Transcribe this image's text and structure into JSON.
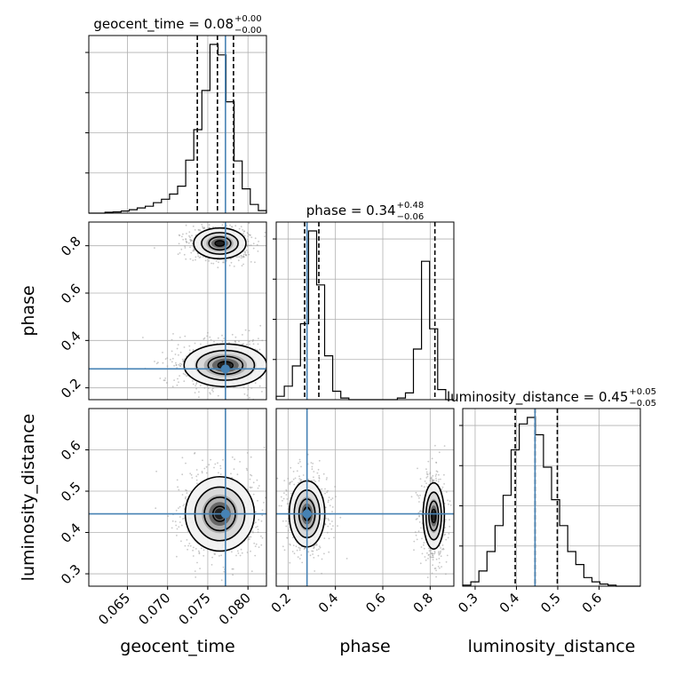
{
  "chart_data": {
    "type": "corner",
    "parameters": [
      {
        "name": "geocent_time",
        "xlabel": "geocent_time",
        "ylabel": "",
        "title_prefix": "geocent_time = 0.08",
        "title_sup": "+0.00",
        "title_sub": "−0.00",
        "range": [
          0.0602,
          0.0823
        ],
        "ticks": [
          0.065,
          0.07,
          0.075,
          0.08
        ],
        "tick_labels": [
          "0.065",
          "0.070",
          "0.075",
          "0.080"
        ],
        "truth": 0.0772,
        "quantiles": [
          0.0737,
          0.0762,
          0.0782
        ],
        "hist": [
          0,
          0,
          0.5,
          0.7,
          1.2,
          2.0,
          3.0,
          4.0,
          6.0,
          8.0,
          11.0,
          15.5,
          30.5,
          48.0,
          70.5,
          97.0,
          91.0,
          64.0,
          30.0,
          14.0,
          5.0,
          1.5
        ]
      },
      {
        "name": "phase",
        "xlabel": "phase",
        "ylabel": "phase",
        "title_prefix": "phase = 0.34",
        "title_sup": "+0.48",
        "title_sub": "−0.06",
        "range": [
          0.15,
          0.9
        ],
        "ticks": [
          0.2,
          0.4,
          0.6,
          0.8
        ],
        "tick_labels": [
          "0.2",
          "0.4",
          "0.6",
          "0.8"
        ],
        "tick_labels_y": [
          "0.2",
          "0.4",
          "0.6",
          "0.8"
        ],
        "truth": 0.28,
        "quantiles": [
          0.27,
          0.33,
          0.82
        ],
        "hist": [
          0.02,
          0.08,
          0.2,
          0.45,
          1.0,
          0.68,
          0.26,
          0.05,
          0.01,
          0,
          0,
          0,
          0,
          0,
          0,
          0.01,
          0.04,
          0.3,
          0.82,
          0.42,
          0.06,
          0
        ]
      },
      {
        "name": "luminosity_distance",
        "xlabel": "luminosity_distance",
        "ylabel": "luminosity_distance",
        "title_prefix": "luminosity_distance = 0.45",
        "title_sup": "+0.05",
        "title_sub": "−0.05",
        "range": [
          0.27,
          0.7
        ],
        "ticks": [
          0.3,
          0.4,
          0.5,
          0.6
        ],
        "tick_labels": [
          "0.3",
          "0.4",
          "0.5",
          "0.6"
        ],
        "tick_labels_y": [
          "0.3",
          "0.4",
          "0.5",
          "0.6"
        ],
        "truth": 0.445,
        "quantiles": [
          0.397,
          0.445,
          0.499
        ],
        "hist": [
          0.005,
          0.02,
          0.07,
          0.16,
          0.28,
          0.42,
          0.63,
          0.75,
          0.78,
          0.7,
          0.55,
          0.4,
          0.28,
          0.16,
          0.1,
          0.04,
          0.02,
          0.01,
          0.005,
          0,
          0,
          0
        ]
      }
    ],
    "pairs": [
      {
        "x": "geocent_time",
        "y": "phase",
        "modes": [
          {
            "cx": 0.0765,
            "cy": 0.81,
            "rx": [
              0.073,
              0.0795
            ],
            "ry": [
              0.74,
              0.87
            ],
            "levels": [
              1.0,
              0.7,
              0.42,
              0.18
            ]
          },
          {
            "cx": 0.0772,
            "cy": 0.295,
            "rx": [
              0.0705,
              0.0808
            ],
            "ry": [
              0.21,
              0.39
            ],
            "levels": [
              1.0,
              0.7,
              0.42,
              0.18
            ]
          }
        ]
      },
      {
        "x": "geocent_time",
        "y": "luminosity_distance",
        "modes": [
          {
            "cx": 0.0765,
            "cy": 0.445,
            "rx": [
              0.0722,
              0.0808
            ],
            "ry": [
              0.355,
              0.535
            ],
            "levels": [
              1.0,
              0.72,
              0.45,
              0.2
            ]
          }
        ]
      },
      {
        "x": "phase",
        "y": "luminosity_distance",
        "modes": [
          {
            "cx": 0.28,
            "cy": 0.445,
            "rx": [
              0.2,
              0.35
            ],
            "ry": [
              0.365,
              0.525
            ],
            "levels": [
              1.0,
              0.72,
              0.45,
              0.2
            ]
          },
          {
            "cx": 0.815,
            "cy": 0.44,
            "rx": [
              0.77,
              0.86
            ],
            "ry": [
              0.37,
              0.53
            ],
            "levels": [
              1.0,
              0.72,
              0.45,
              0.2
            ]
          }
        ]
      }
    ],
    "colors": {
      "truth": "#4682b4",
      "line": "#000000",
      "grid": "#b0b0b0",
      "points": "#9a9a9a"
    },
    "grid": true
  }
}
